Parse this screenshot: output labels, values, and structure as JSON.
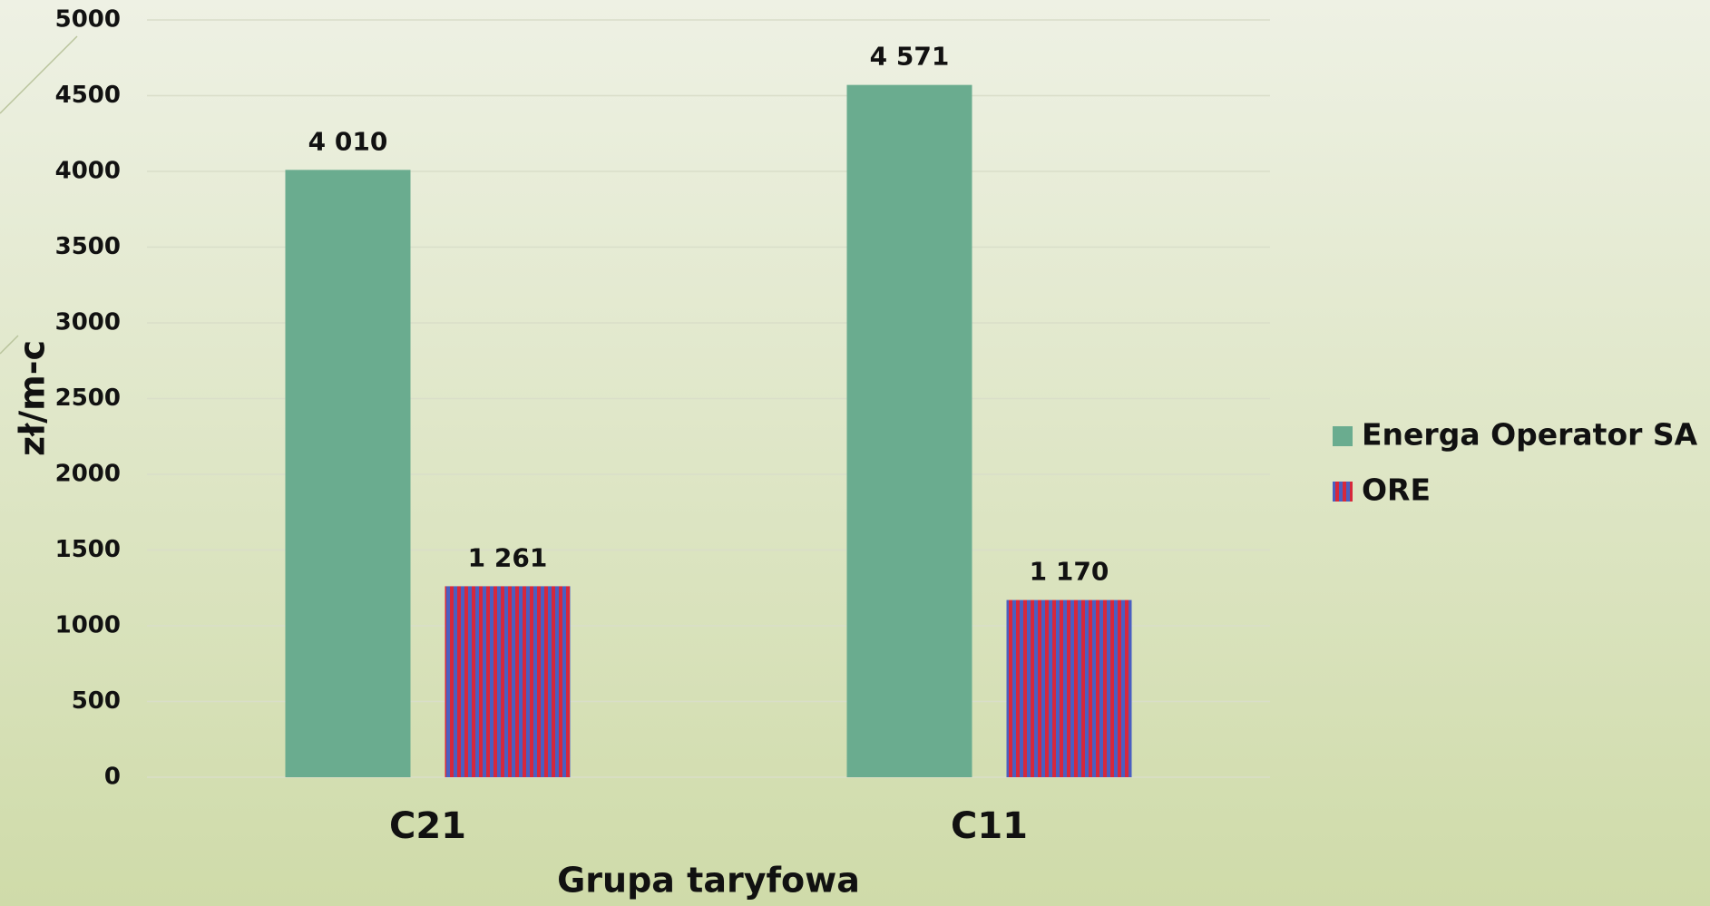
{
  "chart_data": {
    "type": "bar",
    "x_label": "Grupa taryfowa",
    "y_label": "zł/m-c",
    "categories": [
      "C21",
      "C11"
    ],
    "series": [
      {
        "name": "Energa Operator SA",
        "color": "#6aac8f",
        "values": [
          4010,
          4571
        ],
        "value_labels": [
          "4 010",
          "4 571"
        ]
      },
      {
        "name": "ORE",
        "color": "#d6283c",
        "stripe_color": "#4a5fc1",
        "values": [
          1261,
          1170
        ],
        "value_labels": [
          "1 261",
          "1 170"
        ]
      }
    ],
    "ylim": [
      0,
      5000
    ],
    "yticks": [
      0,
      500,
      1000,
      1500,
      2000,
      2500,
      3000,
      3500,
      4000,
      4500,
      5000
    ],
    "grid": true,
    "legend": "right"
  }
}
